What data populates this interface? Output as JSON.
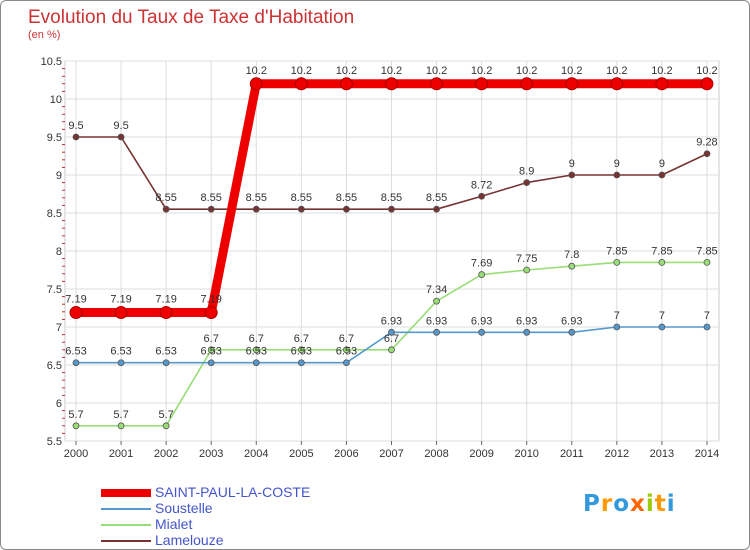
{
  "title": "Evolution du Taux de Taxe d'Habitation",
  "unit_label": "(en %)",
  "brand": {
    "letters": [
      "P",
      "r",
      "o",
      "x",
      "i",
      "t",
      "i"
    ],
    "colors": [
      "#3399dd",
      "#ff9900",
      "#3399dd",
      "#ff6600",
      "#99cc00",
      "#ff9900",
      "#3399dd"
    ]
  },
  "chart_data": {
    "type": "line",
    "title": "Evolution du Taux de Taxe d'Habitation",
    "ylabel": "(en %)",
    "xlabel": "",
    "ylim": [
      5.5,
      10.5
    ],
    "yticks": [
      "5.5",
      "6",
      "6.5",
      "7",
      "7.5",
      "8",
      "8.5",
      "9",
      "9.5",
      "10",
      "10.5"
    ],
    "x": [
      "2000",
      "2001",
      "2002",
      "2003",
      "2004",
      "2005",
      "2006",
      "2007",
      "2008",
      "2009",
      "2010",
      "2011",
      "2012",
      "2013",
      "2014"
    ],
    "grid": true,
    "legend_position": "bottom-left",
    "series": [
      {
        "name": "SAINT-PAUL-LA-COSTE",
        "color": "#ee0000",
        "line_style": "bold",
        "values": [
          7.19,
          7.19,
          7.19,
          7.19,
          10.2,
          10.2,
          10.2,
          10.2,
          10.2,
          10.2,
          10.2,
          10.2,
          10.2,
          10.2,
          10.2
        ],
        "labels": [
          "7.19",
          "7.19",
          "7.19",
          "7.19",
          "10.2",
          "10.2",
          "10.2",
          "10.2",
          "10.2",
          "10.2",
          "10.2",
          "10.2",
          "10.2",
          "10.2",
          "10.2"
        ]
      },
      {
        "name": "Soustelle",
        "color": "#5599cc",
        "line_style": "thin",
        "values": [
          6.53,
          6.53,
          6.53,
          6.53,
          6.53,
          6.53,
          6.53,
          6.93,
          6.93,
          6.93,
          6.93,
          6.93,
          7,
          7,
          7
        ],
        "labels": [
          "6.53",
          "6.53",
          "6.53",
          "6.53",
          "6.53",
          "6.53",
          "6.53",
          "6.93",
          "6.93",
          "6.93",
          "6.93",
          "6.93",
          "7",
          "7",
          "7"
        ]
      },
      {
        "name": "Mialet",
        "color": "#99dd77",
        "line_style": "thin",
        "values": [
          5.7,
          5.7,
          5.7,
          6.7,
          6.7,
          6.7,
          6.7,
          6.7,
          7.34,
          7.69,
          7.75,
          7.8,
          7.85,
          7.85,
          7.85
        ],
        "labels": [
          "5.7",
          "5.7",
          "5.7",
          "6.7",
          "6.7",
          "6.7",
          "6.7",
          "6.7",
          "7.34",
          "7.69",
          "7.75",
          "7.8",
          "7.85",
          "7.85",
          "7.85"
        ]
      },
      {
        "name": "Lamelouze",
        "color": "#773333",
        "line_style": "thin",
        "values": [
          9.5,
          9.5,
          8.55,
          8.55,
          8.55,
          8.55,
          8.55,
          8.55,
          8.55,
          8.72,
          8.9,
          9,
          9,
          9,
          9.28
        ],
        "labels": [
          "9.5",
          "9.5",
          "8.55",
          "8.55",
          "8.55",
          "8.55",
          "8.55",
          "8.55",
          "8.55",
          "8.72",
          "8.9",
          "9",
          "9",
          "9",
          "9.28"
        ]
      }
    ]
  }
}
